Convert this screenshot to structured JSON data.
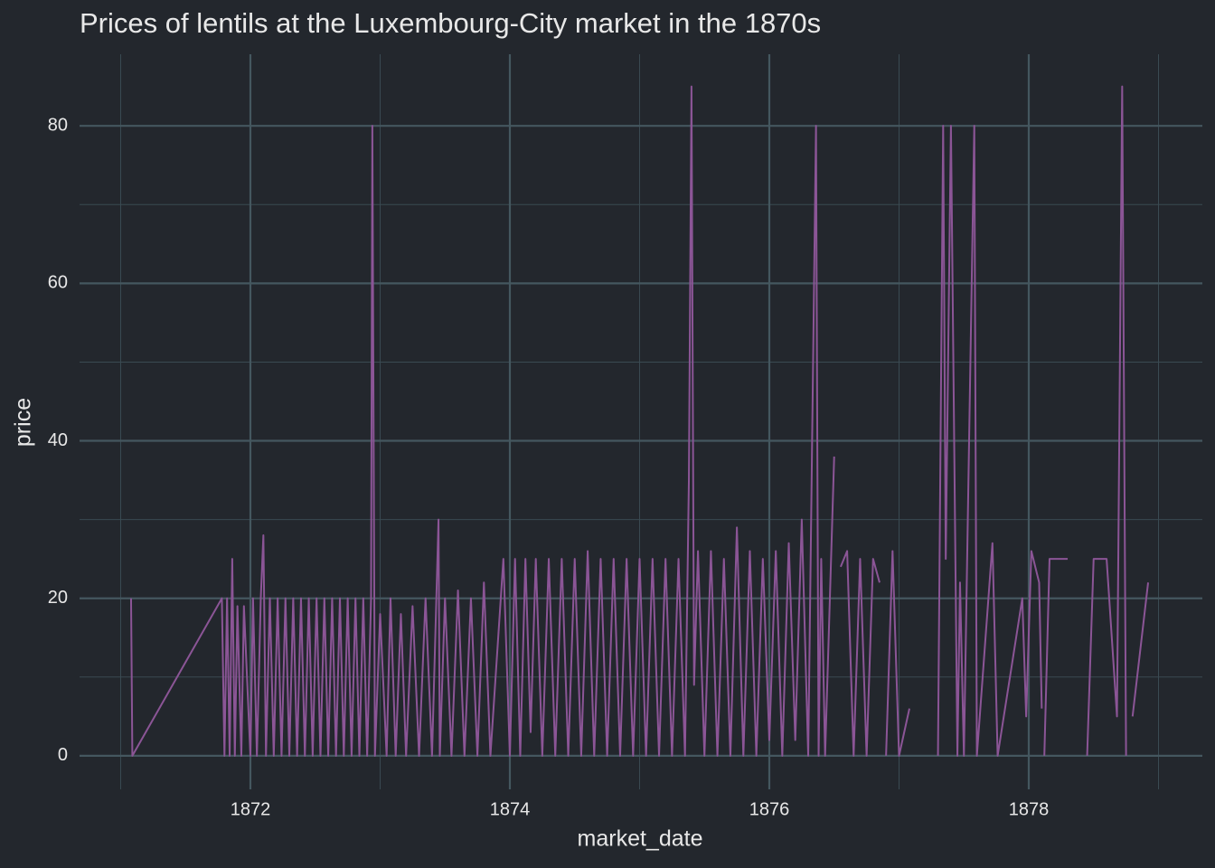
{
  "chart_data": {
    "type": "line",
    "title": "Prices of lentils at the Luxembourg-City market in the 1870s",
    "x_label": "market_date",
    "y_label": "price",
    "xlim": [
      1870.683,
      1879.338
    ],
    "ylim": [
      -4.26,
      89.09
    ],
    "xticks": [
      1872,
      1874,
      1876,
      1878
    ],
    "yticks": [
      0,
      20,
      40,
      60,
      80
    ],
    "grid": true,
    "series": [
      {
        "color": "#8b5596",
        "x": [
          1871.08,
          1871.09,
          1871.78,
          1871.8,
          1871.82,
          1871.84,
          1871.86,
          1871.88,
          1871.9,
          1871.93,
          1871.95,
          1872.0,
          1872.02,
          1872.05,
          1872.08,
          1872.1,
          1872.12,
          1872.15,
          1872.18,
          1872.21,
          1872.24,
          1872.27,
          1872.3,
          1872.33,
          1872.36,
          1872.39,
          1872.42,
          1872.45,
          1872.48,
          1872.51,
          1872.54,
          1872.57,
          1872.6,
          1872.63,
          1872.66,
          1872.69,
          1872.72,
          1872.75,
          1872.78,
          1872.81,
          1872.84,
          1872.87,
          1872.9,
          1872.93,
          1872.94,
          1872.96,
          1873.0,
          1873.05,
          1873.08,
          1873.12,
          1873.16,
          1873.2,
          1873.25,
          1873.3,
          1873.35,
          1873.4,
          1873.45,
          1873.46,
          1873.5,
          1873.55,
          1873.6,
          1873.65,
          1873.7,
          1873.75,
          1873.8,
          1873.85,
          1873.95,
          1874.0,
          1874.04,
          1874.08,
          1874.12,
          1874.16,
          1874.2,
          1874.25,
          1874.3,
          1874.35,
          1874.4,
          1874.45,
          1874.5,
          1874.55,
          1874.6,
          1874.65,
          1874.7,
          1874.75,
          1874.8,
          1874.85,
          1874.9,
          1874.95,
          1875.0,
          1875.05,
          1875.1,
          1875.15,
          1875.2,
          1875.25,
          1875.3,
          1875.35,
          1875.38,
          1875.4,
          1875.42,
          1875.45,
          1875.5,
          1875.55,
          1875.6,
          1875.65,
          1875.7,
          1875.75,
          1875.8,
          1875.85,
          1875.9,
          1875.95,
          1876.0,
          1876.05,
          1876.1,
          1876.15,
          1876.2,
          1876.25,
          1876.3,
          1876.36,
          1876.38,
          1876.4,
          1876.43,
          1876.5,
          1876.52,
          1876.55,
          1876.6,
          1876.65,
          1876.7,
          1876.75,
          1876.8,
          1876.85,
          1876.87,
          1876.9,
          1876.95,
          1877.0,
          1877.08,
          1877.1,
          1877.3,
          1877.34,
          1877.36,
          1877.4,
          1877.45,
          1877.47,
          1877.5,
          1877.58,
          1877.6,
          1877.72,
          1877.76,
          1877.95,
          1877.98,
          1878.02,
          1878.08,
          1878.1,
          1878.11,
          1878.12,
          1878.16,
          1878.22,
          1878.3,
          1878.35,
          1878.45,
          1878.5,
          1878.6,
          1878.68,
          1878.72,
          1878.75,
          1878.77,
          1878.8,
          1878.92
        ],
        "values": [
          20,
          0,
          20,
          0,
          20,
          0,
          25,
          0,
          19,
          0,
          19,
          0,
          20,
          0,
          20,
          28,
          0,
          20,
          0,
          20,
          0,
          20,
          0,
          20,
          0,
          20,
          0,
          20,
          0,
          20,
          0,
          20,
          0,
          20,
          0,
          20,
          0,
          20,
          0,
          20,
          0,
          20,
          0,
          20,
          80,
          0,
          18,
          0,
          20,
          0,
          18,
          0,
          19,
          0,
          20,
          0,
          30,
          0,
          20,
          0,
          21,
          0,
          20,
          0,
          22,
          0,
          25,
          0,
          25,
          0,
          25,
          3,
          25,
          0,
          25,
          0,
          25,
          0,
          25,
          0,
          26,
          0,
          25,
          0,
          25,
          0,
          25,
          0,
          25,
          0,
          25,
          0,
          25,
          0,
          25,
          0,
          35,
          85,
          9,
          26,
          0,
          26,
          0,
          25,
          0,
          29,
          0,
          26,
          0,
          25,
          2,
          26,
          0,
          27,
          2,
          30,
          0,
          80,
          0,
          25,
          0,
          38,
          null,
          24,
          26,
          0,
          25,
          0,
          25,
          22,
          null,
          0,
          26,
          0,
          6,
          null,
          0,
          80,
          25,
          80,
          0,
          22,
          0,
          80,
          0,
          27,
          0,
          20,
          5,
          26,
          22,
          6,
          null,
          0,
          25,
          25,
          25,
          null,
          0,
          25,
          25,
          5,
          85,
          0,
          null,
          5,
          22
        ]
      }
    ]
  }
}
